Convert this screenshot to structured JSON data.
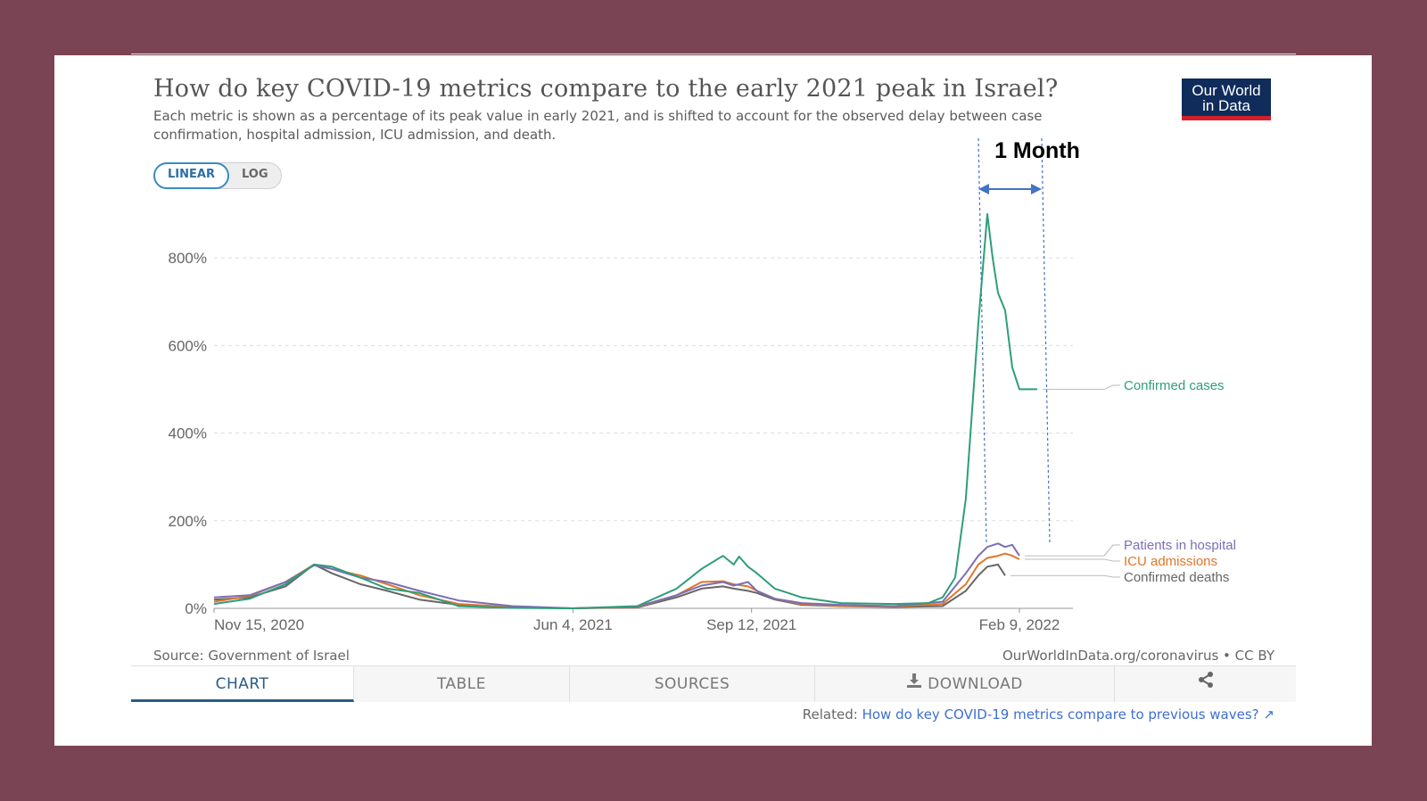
{
  "title": "How do key COVID-19 metrics compare to the early 2021 peak in Israel?",
  "subtitle": "Each metric is shown as a percentage of its peak value in early 2021, and is shifted to account for the observed delay between case confirmation, hospital admission, ICU admission, and death.",
  "logo": {
    "line1": "Our World",
    "line2": "in Data",
    "bg": "#0f2c5a",
    "accent": "#d4202b"
  },
  "scale_toggle": {
    "linear": "LINEAR",
    "log": "LOG",
    "selected": "LINEAR"
  },
  "annotation": {
    "label": "1 Month",
    "arrow_color": "#4472c4"
  },
  "footer": {
    "source": "Source: Government of Israel",
    "url": "OurWorldInData.org/coronavirus • CC BY"
  },
  "tabs": {
    "chart": "CHART",
    "table": "TABLE",
    "sources": "SOURCES",
    "download": "DOWNLOAD",
    "share_icon": "share-icon",
    "selected": "CHART"
  },
  "related": {
    "prefix": "Related:",
    "link": "How do key COVID-19 metrics compare to previous waves?"
  },
  "chart_data": {
    "type": "line",
    "y_ticks": [
      "0%",
      "200%",
      "400%",
      "600%",
      "800%"
    ],
    "ylim": [
      0,
      900
    ],
    "x_ticks": [
      "Nov 15, 2020",
      "Jun 4, 2021",
      "Sep 12, 2021",
      "Feb 9, 2022"
    ],
    "x_tick_dates": [
      "2020-11-15",
      "2021-06-04",
      "2021-09-12",
      "2022-02-09"
    ],
    "grid": true,
    "legend": "inline-right",
    "series": [
      {
        "name": "Confirmed cases",
        "color": "#2e9e7a",
        "x": [
          "2020-11-15",
          "2020-12-05",
          "2020-12-25",
          "2021-01-10",
          "2021-01-20",
          "2021-02-05",
          "2021-02-20",
          "2021-03-10",
          "2021-04-01",
          "2021-05-01",
          "2021-06-04",
          "2021-07-10",
          "2021-08-01",
          "2021-08-15",
          "2021-08-27",
          "2021-09-02",
          "2021-09-05",
          "2021-09-10",
          "2021-09-15",
          "2021-09-25",
          "2021-10-10",
          "2021-11-01",
          "2021-12-01",
          "2021-12-20",
          "2021-12-28",
          "2022-01-04",
          "2022-01-10",
          "2022-01-17",
          "2022-01-22",
          "2022-01-25",
          "2022-01-28",
          "2022-02-01",
          "2022-02-05",
          "2022-02-09",
          "2022-02-14",
          "2022-02-19"
        ],
        "y": [
          10,
          22,
          55,
          100,
          95,
          70,
          45,
          35,
          5,
          1,
          0,
          5,
          45,
          90,
          120,
          100,
          118,
          95,
          80,
          45,
          25,
          12,
          10,
          12,
          25,
          70,
          250,
          650,
          900,
          800,
          720,
          680,
          550,
          500,
          500,
          500
        ]
      },
      {
        "name": "Patients in hospital",
        "color": "#7b6fb5",
        "x": [
          "2020-11-15",
          "2020-12-05",
          "2020-12-25",
          "2021-01-10",
          "2021-01-20",
          "2021-02-05",
          "2021-02-20",
          "2021-03-10",
          "2021-04-01",
          "2021-05-01",
          "2021-06-04",
          "2021-07-10",
          "2021-08-01",
          "2021-08-15",
          "2021-08-27",
          "2021-09-02",
          "2021-09-10",
          "2021-09-15",
          "2021-09-25",
          "2021-10-10",
          "2021-11-01",
          "2021-12-01",
          "2021-12-28",
          "2022-01-10",
          "2022-01-17",
          "2022-01-22",
          "2022-01-28",
          "2022-02-01",
          "2022-02-05",
          "2022-02-09"
        ],
        "y": [
          25,
          30,
          60,
          98,
          90,
          70,
          60,
          40,
          18,
          5,
          0,
          4,
          30,
          52,
          60,
          52,
          60,
          40,
          22,
          12,
          8,
          5,
          15,
          80,
          120,
          140,
          148,
          140,
          145,
          120
        ]
      },
      {
        "name": "ICU admissions",
        "color": "#e0752b",
        "x": [
          "2020-11-15",
          "2020-12-05",
          "2020-12-25",
          "2021-01-10",
          "2021-01-20",
          "2021-02-05",
          "2021-02-20",
          "2021-03-10",
          "2021-04-01",
          "2021-05-01",
          "2021-06-04",
          "2021-07-10",
          "2021-08-01",
          "2021-08-15",
          "2021-08-27",
          "2021-09-02",
          "2021-09-10",
          "2021-09-15",
          "2021-09-25",
          "2021-10-10",
          "2021-11-01",
          "2021-12-01",
          "2021-12-28",
          "2022-01-10",
          "2022-01-17",
          "2022-01-22",
          "2022-01-28",
          "2022-02-01",
          "2022-02-05",
          "2022-02-09"
        ],
        "y": [
          15,
          28,
          60,
          100,
          90,
          75,
          55,
          30,
          10,
          3,
          0,
          3,
          30,
          60,
          62,
          55,
          50,
          40,
          22,
          10,
          6,
          4,
          10,
          55,
          100,
          115,
          120,
          125,
          120,
          112
        ]
      },
      {
        "name": "Confirmed deaths",
        "color": "#666666",
        "x": [
          "2020-11-15",
          "2020-12-05",
          "2020-12-25",
          "2021-01-10",
          "2021-01-20",
          "2021-02-05",
          "2021-02-20",
          "2021-03-10",
          "2021-04-01",
          "2021-05-01",
          "2021-06-04",
          "2021-07-10",
          "2021-08-01",
          "2021-08-15",
          "2021-08-27",
          "2021-09-02",
          "2021-09-10",
          "2021-09-15",
          "2021-09-25",
          "2021-10-10",
          "2021-11-01",
          "2021-12-01",
          "2021-12-28",
          "2022-01-10",
          "2022-01-17",
          "2022-01-22",
          "2022-01-28",
          "2022-02-01"
        ],
        "y": [
          20,
          25,
          50,
          100,
          80,
          55,
          40,
          20,
          8,
          2,
          0,
          2,
          25,
          45,
          50,
          45,
          40,
          35,
          20,
          8,
          5,
          3,
          5,
          40,
          75,
          95,
          100,
          75
        ]
      }
    ]
  }
}
